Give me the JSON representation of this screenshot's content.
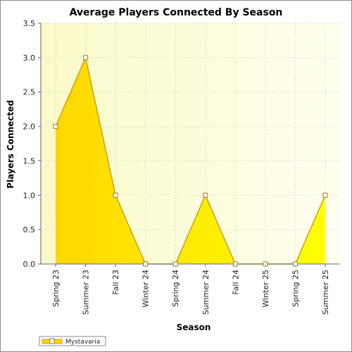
{
  "chart_data": {
    "type": "area",
    "title": "Average Players Connected By Season",
    "xlabel": "Season",
    "ylabel": "Players Connected",
    "categories": [
      "Spring 23",
      "Summer 23",
      "Fall 23",
      "Winter 24",
      "Spring 24",
      "Summer 24",
      "Fall 24",
      "Winter 25",
      "Spring 25",
      "Summer 25"
    ],
    "series": [
      {
        "name": "Mystavaria",
        "values": [
          2,
          3,
          1,
          0,
          0,
          1,
          0,
          0,
          0,
          1
        ]
      }
    ],
    "ylim": [
      0,
      3.5
    ],
    "yticks": [
      "0.0",
      "0.5",
      "1.0",
      "1.5",
      "2.0",
      "2.5",
      "3.0",
      "3.5"
    ],
    "grid": true,
    "legend_position": "bottom-left",
    "colors": {
      "area_top": "#ffd700",
      "area_bottom": "#ffff00",
      "line": "#c8a020",
      "plot_bg_left": "#fafac8",
      "plot_bg_right": "#ffffef",
      "grid": "#c8c8b4"
    }
  }
}
